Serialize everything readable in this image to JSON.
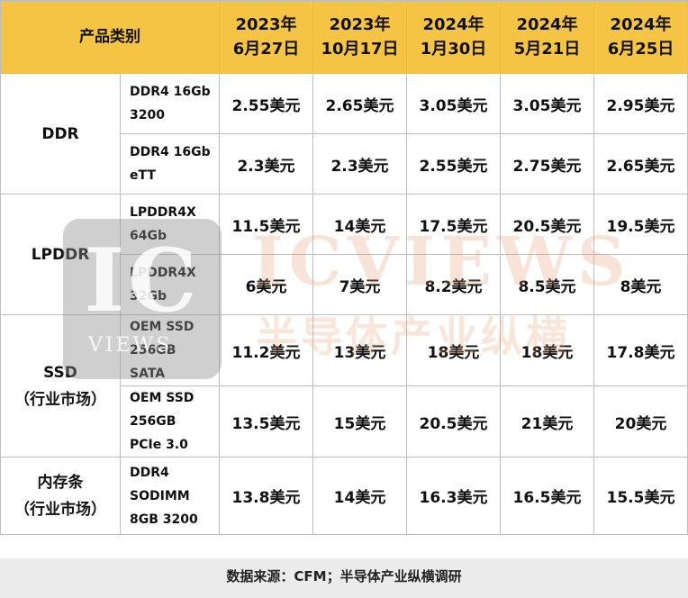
{
  "header": {
    "category": "产品类别",
    "dates": [
      "2023年\n6月27日",
      "2023年\n10月17日",
      "2024年\n1月30日",
      "2024年\n5月21日",
      "2024年\n6月25日"
    ]
  },
  "groups": [
    {
      "name": "DDR",
      "rows": [
        {
          "product": "DDR4 16Gb\n3200",
          "prices": [
            "2.55美元",
            "2.65美元",
            "3.05美元",
            "3.05美元",
            "2.95美元"
          ]
        },
        {
          "product": "DDR4 16Gb\neTT",
          "prices": [
            "2.3美元",
            "2.3美元",
            "2.55美元",
            "2.75美元",
            "2.65美元"
          ]
        }
      ]
    },
    {
      "name": "LPDDR",
      "rows": [
        {
          "product": "LPDDR4X\n64Gb",
          "prices": [
            "11.5美元",
            "14美元",
            "17.5美元",
            "20.5美元",
            "19.5美元"
          ]
        },
        {
          "product": "LPDDR4X\n32Gb",
          "prices": [
            "6美元",
            "7美元",
            "8.2美元",
            "8.5美元",
            "8美元"
          ]
        }
      ]
    },
    {
      "name": "SSD\n（行业市场）",
      "rows": [
        {
          "product": "OEM SSD\n256GB\nSATA",
          "prices": [
            "11.2美元",
            "13美元",
            "18美元",
            "18美元",
            "17.8美元"
          ]
        },
        {
          "product": "OEM SSD\n256GB\nPCIe 3.0",
          "prices": [
            "13.5美元",
            "15美元",
            "20.5美元",
            "21美元",
            "20美元"
          ]
        }
      ]
    },
    {
      "name": "内存条\n（行业市场）",
      "rows": [
        {
          "product": "DDR4\nSODIMM\n8GB 3200",
          "prices": [
            "13.8美元",
            "14美元",
            "16.3美元",
            "16.5美元",
            "15.5美元"
          ]
        }
      ]
    }
  ],
  "footer": "数据来源：CFM；半导体产业纵横调研",
  "watermark": {
    "logo": "IC",
    "logo_small": "VIEWS",
    "title": "ICVIEWS",
    "subtitle": "半导体产业纵横"
  },
  "colors": {
    "header_bg": "#f6c444",
    "border": "#bdbdbd",
    "footer_bg": "#ebebeb"
  }
}
